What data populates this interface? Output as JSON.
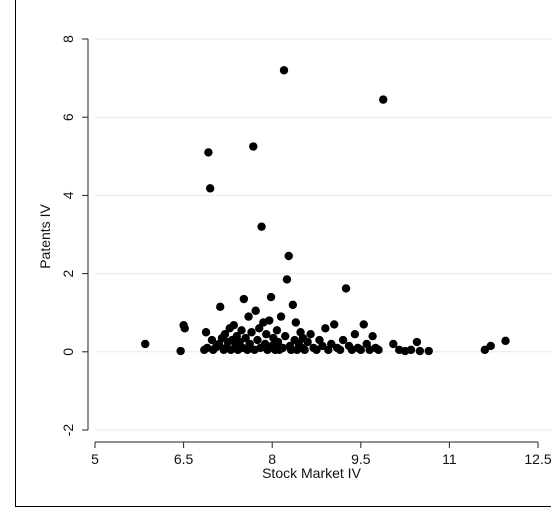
{
  "top_caption": "",
  "chart_data": {
    "type": "scatter",
    "title": "",
    "xlabel": "Stock Market IV",
    "ylabel": "Patents IV",
    "xlim": [
      5,
      12.5
    ],
    "ylim": [
      -2,
      8
    ],
    "xticks": [
      "5",
      "6.5",
      "8",
      "9.5",
      "11",
      "12.5"
    ],
    "yticks": [
      "-2",
      "0",
      "2",
      "4",
      "6",
      "8"
    ],
    "grid": "horizontal",
    "marker_color": "#000000",
    "points": [
      [
        5.85,
        0.2
      ],
      [
        6.45,
        0.02
      ],
      [
        6.5,
        0.68
      ],
      [
        6.52,
        0.6
      ],
      [
        6.85,
        0.05
      ],
      [
        6.88,
        0.5
      ],
      [
        6.9,
        0.1
      ],
      [
        6.92,
        5.1
      ],
      [
        6.95,
        4.18
      ],
      [
        6.98,
        0.3
      ],
      [
        7.0,
        0.05
      ],
      [
        7.05,
        0.12
      ],
      [
        7.1,
        0.2
      ],
      [
        7.12,
        1.15
      ],
      [
        7.15,
        0.35
      ],
      [
        7.18,
        0.05
      ],
      [
        7.2,
        0.45
      ],
      [
        7.22,
        0.1
      ],
      [
        7.25,
        0.25
      ],
      [
        7.28,
        0.6
      ],
      [
        7.3,
        0.05
      ],
      [
        7.32,
        0.3
      ],
      [
        7.35,
        0.68
      ],
      [
        7.38,
        0.15
      ],
      [
        7.4,
        0.4
      ],
      [
        7.42,
        0.05
      ],
      [
        7.45,
        0.25
      ],
      [
        7.48,
        0.55
      ],
      [
        7.5,
        0.1
      ],
      [
        7.52,
        1.35
      ],
      [
        7.55,
        0.35
      ],
      [
        7.58,
        0.05
      ],
      [
        7.6,
        0.9
      ],
      [
        7.62,
        0.2
      ],
      [
        7.65,
        0.5
      ],
      [
        7.68,
        5.25
      ],
      [
        7.7,
        0.05
      ],
      [
        7.72,
        1.05
      ],
      [
        7.75,
        0.3
      ],
      [
        7.78,
        0.6
      ],
      [
        7.8,
        0.1
      ],
      [
        7.82,
        3.2
      ],
      [
        7.85,
        0.75
      ],
      [
        7.88,
        0.2
      ],
      [
        7.9,
        0.45
      ],
      [
        7.92,
        0.05
      ],
      [
        7.95,
        0.8
      ],
      [
        7.98,
        1.4
      ],
      [
        8.0,
        0.15
      ],
      [
        8.02,
        0.35
      ],
      [
        8.05,
        0.05
      ],
      [
        8.08,
        0.55
      ],
      [
        8.1,
        0.25
      ],
      [
        8.12,
        0.05
      ],
      [
        8.15,
        0.9
      ],
      [
        8.18,
        0.1
      ],
      [
        8.2,
        7.2
      ],
      [
        8.22,
        0.4
      ],
      [
        8.25,
        1.85
      ],
      [
        8.28,
        2.45
      ],
      [
        8.3,
        0.15
      ],
      [
        8.32,
        0.05
      ],
      [
        8.35,
        1.2
      ],
      [
        8.38,
        0.3
      ],
      [
        8.4,
        0.75
      ],
      [
        8.42,
        0.05
      ],
      [
        8.45,
        0.2
      ],
      [
        8.48,
        0.5
      ],
      [
        8.5,
        0.1
      ],
      [
        8.52,
        0.35
      ],
      [
        8.55,
        0.05
      ],
      [
        8.6,
        0.25
      ],
      [
        8.65,
        0.45
      ],
      [
        8.7,
        0.1
      ],
      [
        8.75,
        0.05
      ],
      [
        8.8,
        0.3
      ],
      [
        8.85,
        0.15
      ],
      [
        8.9,
        0.6
      ],
      [
        8.95,
        0.05
      ],
      [
        9.0,
        0.2
      ],
      [
        9.05,
        0.7
      ],
      [
        9.1,
        0.1
      ],
      [
        9.15,
        0.05
      ],
      [
        9.2,
        0.3
      ],
      [
        9.25,
        1.62
      ],
      [
        9.3,
        0.15
      ],
      [
        9.35,
        0.05
      ],
      [
        9.4,
        0.45
      ],
      [
        9.45,
        0.1
      ],
      [
        9.5,
        0.05
      ],
      [
        9.55,
        0.7
      ],
      [
        9.6,
        0.2
      ],
      [
        9.65,
        0.05
      ],
      [
        9.7,
        0.4
      ],
      [
        9.75,
        0.1
      ],
      [
        9.8,
        0.05
      ],
      [
        9.88,
        6.45
      ],
      [
        10.05,
        0.2
      ],
      [
        10.15,
        0.05
      ],
      [
        10.25,
        0.02
      ],
      [
        10.35,
        0.05
      ],
      [
        10.45,
        0.25
      ],
      [
        10.5,
        0.02
      ],
      [
        10.65,
        0.02
      ],
      [
        11.6,
        0.05
      ],
      [
        11.7,
        0.15
      ],
      [
        11.95,
        0.28
      ]
    ]
  }
}
